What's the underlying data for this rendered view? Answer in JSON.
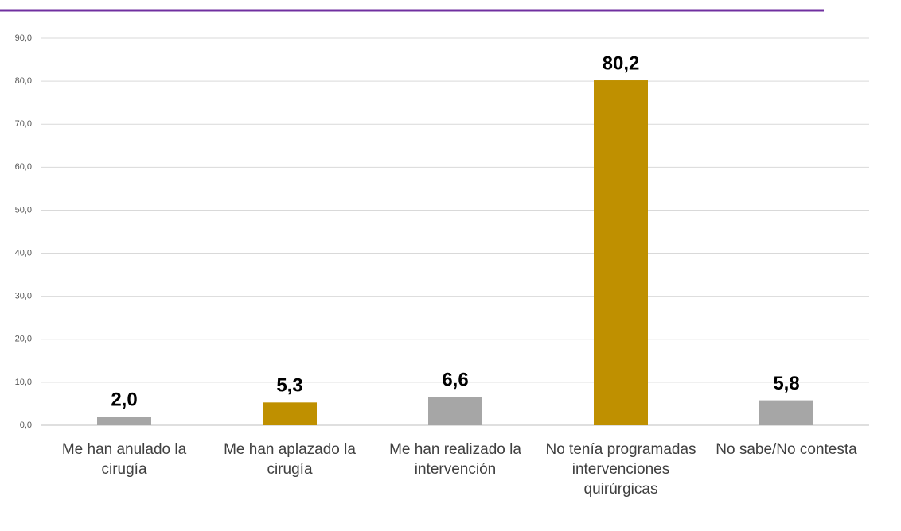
{
  "chart_data": {
    "type": "bar",
    "categories": [
      "Me han anulado la cirugía",
      "Me han aplazado la cirugía",
      "Me han realizado la intervención",
      "No tenía programadas intervenciones quirúrgicas",
      "No sabe/No contesta"
    ],
    "values": [
      2.0,
      5.3,
      6.6,
      80.2,
      5.8
    ],
    "value_labels": [
      "2,0",
      "5,3",
      "6,6",
      "80,2",
      "5,8"
    ],
    "colors": [
      "#a6a6a6",
      "#bf9000",
      "#a6a6a6",
      "#bf9000",
      "#a6a6a6"
    ],
    "ylim": [
      0,
      90
    ],
    "yticks": [
      {
        "value": 0,
        "label": "0,0"
      },
      {
        "value": 10,
        "label": "10,0"
      },
      {
        "value": 20,
        "label": "20,0"
      },
      {
        "value": 30,
        "label": "30,0"
      },
      {
        "value": 40,
        "label": "40,0"
      },
      {
        "value": 50,
        "label": "50,0"
      },
      {
        "value": 60,
        "label": "60,0"
      },
      {
        "value": 70,
        "label": "70,0"
      },
      {
        "value": 80,
        "label": "80,0"
      },
      {
        "value": 90,
        "label": "90,0"
      }
    ],
    "grid": true
  }
}
